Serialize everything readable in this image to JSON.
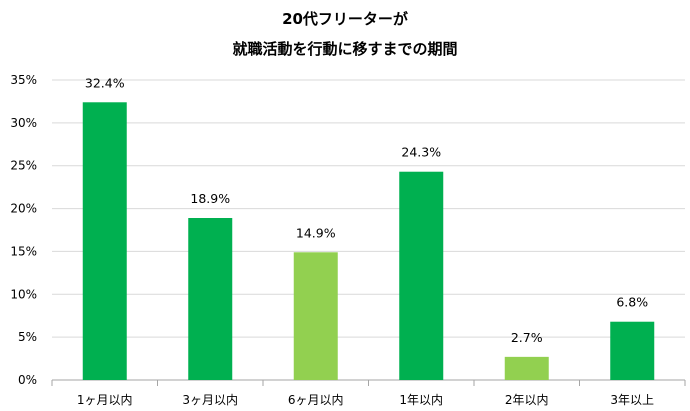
{
  "chart_data": {
    "type": "bar",
    "title": "20代フリーターが",
    "subtitle": "就職活動を行動に移すまでの期間",
    "categories": [
      "1ヶ月以内",
      "3ヶ月以内",
      "6ヶ月以内",
      "1年以内",
      "2年以内",
      "3年以上"
    ],
    "values": [
      32.4,
      18.9,
      14.9,
      24.3,
      2.7,
      6.8
    ],
    "data_labels": [
      "32.4%",
      "18.9%",
      "14.9%",
      "24.3%",
      "2.7%",
      "6.8%"
    ],
    "bar_colors": [
      "#00b050",
      "#00b050",
      "#92d050",
      "#00b050",
      "#92d050",
      "#00b050"
    ],
    "ylim": [
      0,
      35
    ],
    "yticks": [
      0,
      5,
      10,
      15,
      20,
      25,
      30,
      35
    ],
    "ytick_labels": [
      "0%",
      "5%",
      "10%",
      "15%",
      "20%",
      "25%",
      "30%",
      "35%"
    ],
    "grid": true,
    "xlabel": "",
    "ylabel": ""
  }
}
